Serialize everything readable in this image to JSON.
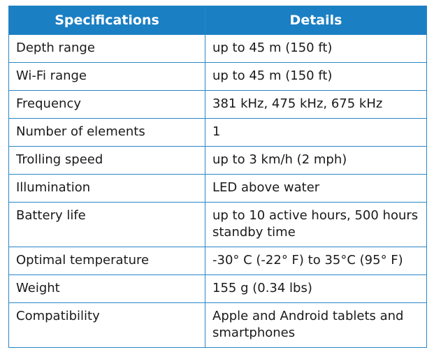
{
  "table": {
    "header": [
      "Specifications",
      "Details"
    ],
    "rows": [
      [
        "Depth range",
        "up to 45 m (150 ft)"
      ],
      [
        "Wi-Fi range",
        "up to 45 m (150 ft)"
      ],
      [
        "Frequency",
        "381 kHz, 475 kHz, 675 kHz"
      ],
      [
        "Number of elements",
        "1"
      ],
      [
        "Trolling speed",
        "up to 3 km/h (2 mph)"
      ],
      [
        "Illumination",
        "LED above water"
      ],
      [
        "Battery life",
        "up to 10 active hours, 500 hours standby time"
      ],
      [
        "Optimal temperature",
        "-30° C (-22° F) to 35°C (95° F)"
      ],
      [
        "Weight",
        "155 g (0.34 lbs)"
      ],
      [
        "Compatibility",
        "Apple and Android tablets and smartphones"
      ]
    ]
  }
}
